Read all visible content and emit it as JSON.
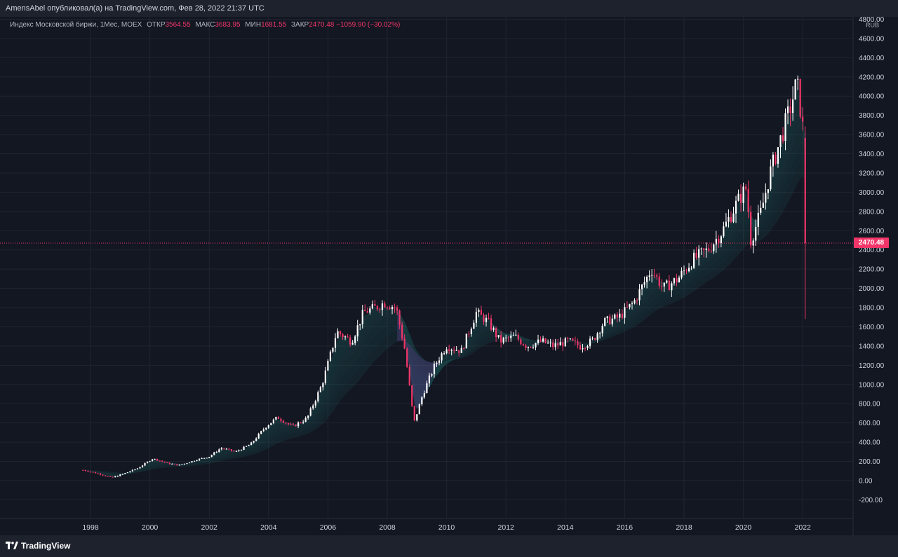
{
  "header": {
    "publish_text": "AmensAbel опубликовал(а) на TradingView.com, Фев 28, 2022 21:37 UTC"
  },
  "legend": {
    "symbol": "Индекс Московской биржи, 1Мес, MOEX",
    "open_label": "ОТКР",
    "open_value": "3564.55",
    "high_label": "МАКС",
    "high_value": "3683.95",
    "low_label": "МИН",
    "low_value": "1681.55",
    "close_label": "ЗАКР",
    "close_value": "2470.48",
    "change": "−1059.90 (−30.02%)"
  },
  "price_axis": {
    "currency": "RUB",
    "last_price_label": "2470.48"
  },
  "branding": {
    "logo_text": "TradingView"
  },
  "colors": {
    "background": "#131722",
    "bar_bg": "#1e222d",
    "grid": "#1f2430",
    "up": "#ffffff",
    "down": "#f23669",
    "ribbon": "#26a69a",
    "ribbon_bear": "#7e57c2"
  },
  "chart_data": {
    "type": "candlestick",
    "interval": "1 month",
    "last_close": 2470.48,
    "ylim": [
      -300,
      4800
    ],
    "y_ticks": [
      4800,
      4600,
      4400,
      4200,
      4000,
      3800,
      3600,
      3400,
      3200,
      3000,
      2800,
      2600,
      2400,
      2200,
      2000,
      1800,
      1600,
      1400,
      1200,
      1000,
      800,
      600,
      400,
      200,
      0,
      -200
    ],
    "y_tick_labels": [
      "4800.00",
      "4600.00",
      "4400.00",
      "4200.00",
      "4000.00",
      "3800.00",
      "3600.00",
      "3400.00",
      "3200.00",
      "3000.00",
      "2800.00",
      "2600.00",
      "2400.00",
      "2200.00",
      "2000.00",
      "1800.00",
      "1600.00",
      "1400.00",
      "1200.00",
      "1000.00",
      "800.00",
      "600.00",
      "400.00",
      "200.00",
      "0.00",
      "-200.00"
    ],
    "x_ticks": [
      1998,
      2000,
      2002,
      2004,
      2006,
      2008,
      2010,
      2012,
      2014,
      2016,
      2018,
      2020,
      2022
    ],
    "xlim": [
      1997.75,
      2022.2
    ],
    "close_path": [
      [
        1997.75,
        110
      ],
      [
        1998.3,
        70
      ],
      [
        1998.7,
        30
      ],
      [
        1999.1,
        70
      ],
      [
        1999.6,
        130
      ],
      [
        2000.1,
        230
      ],
      [
        2000.6,
        180
      ],
      [
        2001.0,
        160
      ],
      [
        2001.6,
        220
      ],
      [
        2002.0,
        250
      ],
      [
        2002.4,
        340
      ],
      [
        2002.9,
        300
      ],
      [
        2003.4,
        380
      ],
      [
        2003.9,
        560
      ],
      [
        2004.3,
        660
      ],
      [
        2004.8,
        560
      ],
      [
        2005.3,
        650
      ],
      [
        2005.8,
        1000
      ],
      [
        2006.3,
        1550
      ],
      [
        2006.8,
        1450
      ],
      [
        2007.2,
        1750
      ],
      [
        2007.6,
        1800
      ],
      [
        2007.9,
        1850
      ],
      [
        2008.3,
        1800
      ],
      [
        2008.6,
        1350
      ],
      [
        2008.9,
        600
      ],
      [
        2009.2,
        900
      ],
      [
        2009.6,
        1200
      ],
      [
        2010.0,
        1400
      ],
      [
        2010.5,
        1350
      ],
      [
        2011.0,
        1750
      ],
      [
        2011.4,
        1650
      ],
      [
        2011.8,
        1450
      ],
      [
        2012.3,
        1500
      ],
      [
        2012.7,
        1400
      ],
      [
        2013.2,
        1450
      ],
      [
        2013.6,
        1400
      ],
      [
        2014.1,
        1450
      ],
      [
        2014.5,
        1400
      ],
      [
        2014.9,
        1450
      ],
      [
        2015.3,
        1650
      ],
      [
        2015.8,
        1700
      ],
      [
        2016.3,
        1850
      ],
      [
        2016.9,
        2200
      ],
      [
        2017.3,
        2000
      ],
      [
        2017.8,
        2100
      ],
      [
        2018.3,
        2300
      ],
      [
        2018.8,
        2400
      ],
      [
        2019.3,
        2600
      ],
      [
        2019.8,
        2900
      ],
      [
        2020.1,
        3050
      ],
      [
        2020.25,
        2500
      ],
      [
        2020.6,
        2800
      ],
      [
        2020.9,
        3200
      ],
      [
        2021.2,
        3500
      ],
      [
        2021.6,
        3900
      ],
      [
        2021.8,
        4150
      ],
      [
        2021.95,
        3800
      ],
      [
        2022.05,
        3550
      ],
      [
        2022.12,
        2470
      ]
    ]
  }
}
